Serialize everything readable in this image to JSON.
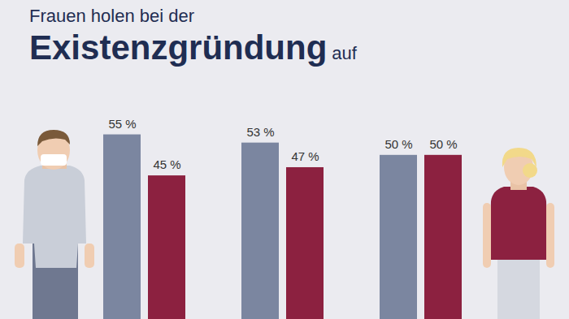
{
  "chart_data": {
    "type": "bar",
    "title": "Frauen holen bei der Existenzgründung auf",
    "categories": [
      null,
      null,
      null
    ],
    "series": [
      {
        "color": "#7b86a0",
        "values": [
          55,
          53,
          50
        ],
        "value_labels": [
          "55 %",
          "53 %",
          "50 %"
        ]
      },
      {
        "color": "#8c2140",
        "values": [
          45,
          47,
          50
        ],
        "value_labels": [
          "45 %",
          "47 %",
          "50 %"
        ]
      }
    ],
    "ylim": [
      10,
      65
    ],
    "grid": false,
    "data_labels": true,
    "tick_labels": false
  }
}
